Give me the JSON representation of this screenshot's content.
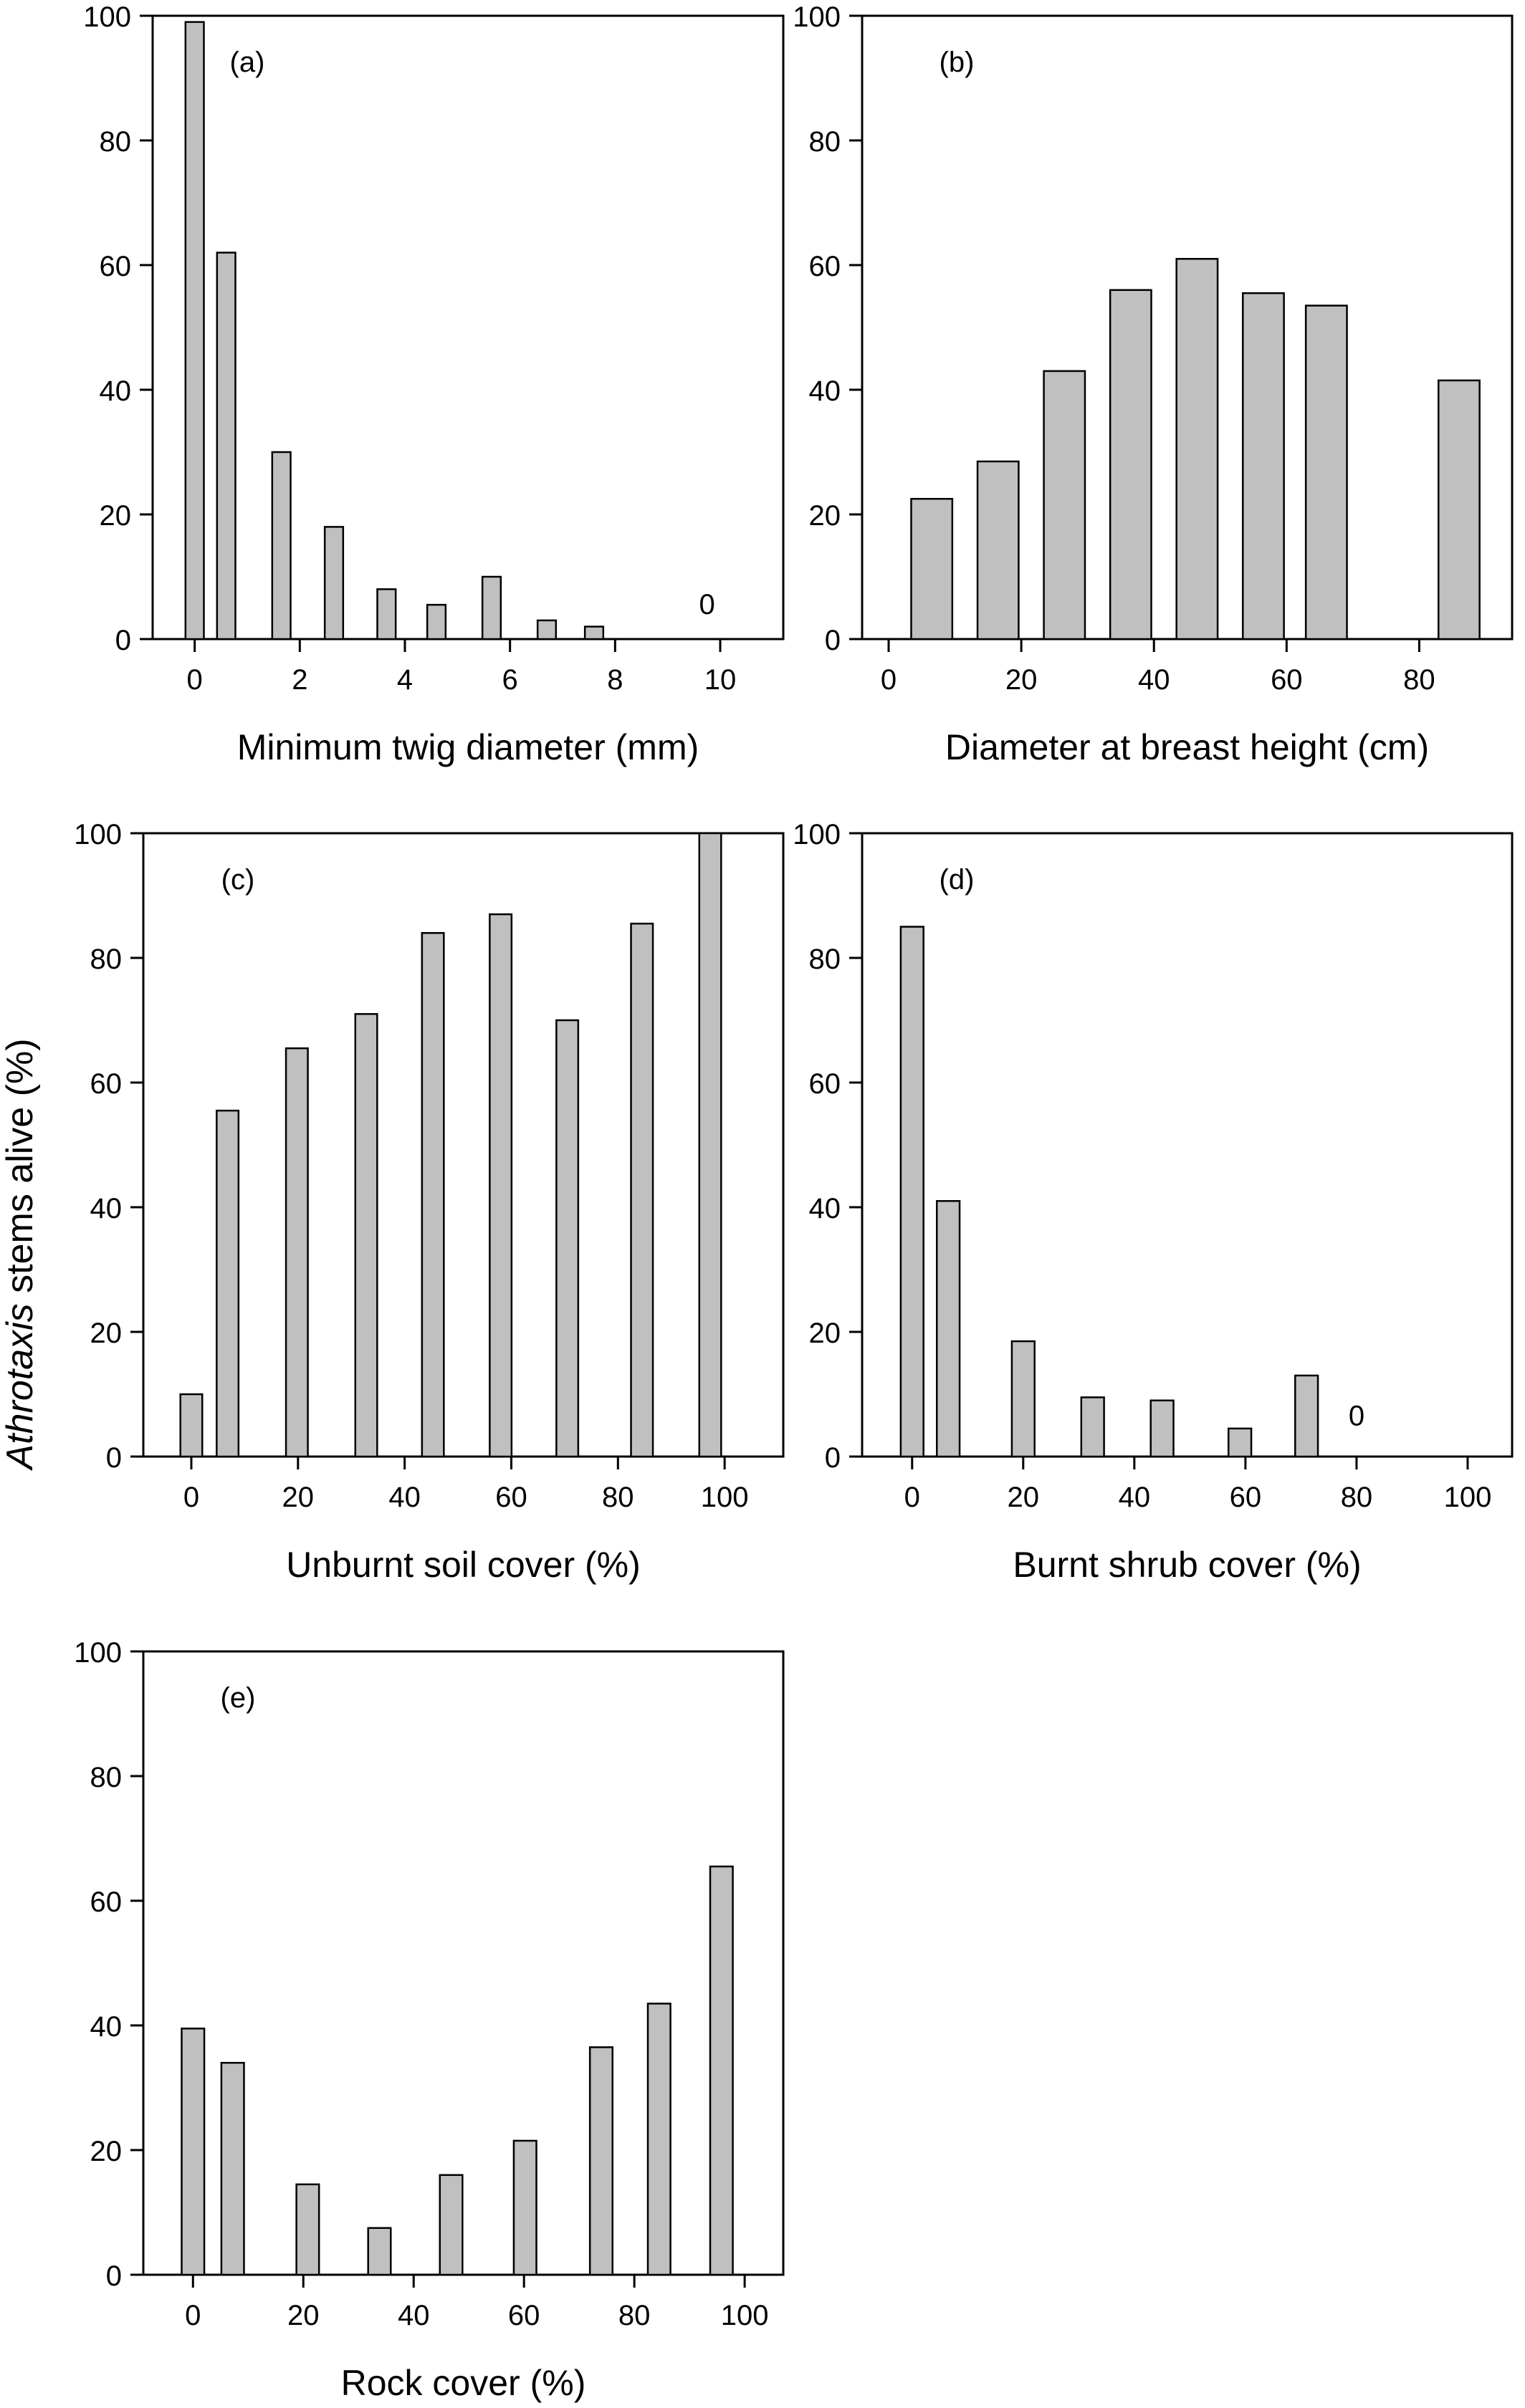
{
  "figure": {
    "ylabel_italic": "Athrotaxis",
    "ylabel_rest": " stems alive (%)"
  },
  "chart_data": [
    {
      "type": "bar",
      "panel_label": "(a)",
      "xlabel": "Minimum twig diameter (mm)",
      "xlim": [
        -0.8,
        11.2
      ],
      "xticks": [
        0,
        2,
        4,
        6,
        8,
        10
      ],
      "ylim": [
        0,
        100
      ],
      "yticks": [
        0,
        20,
        40,
        60,
        80,
        100
      ],
      "bar_width": 0.35,
      "x": [
        0,
        0.6,
        1.65,
        2.65,
        3.65,
        4.6,
        5.65,
        6.7,
        7.6
      ],
      "values": [
        99,
        62,
        30,
        18,
        8,
        5.5,
        10,
        3,
        2
      ],
      "annotations": [
        {
          "text": "0",
          "x": 9.75,
          "y": 4
        }
      ],
      "grid": false,
      "bar_color": "#c0c0c0"
    },
    {
      "type": "bar",
      "panel_label": "(b)",
      "xlabel": "Diameter at breast height (cm)",
      "xlim": [
        -4,
        94
      ],
      "xticks": [
        0,
        20,
        40,
        60,
        80
      ],
      "ylim": [
        0,
        100
      ],
      "yticks": [
        0,
        20,
        40,
        60,
        80,
        100
      ],
      "bar_width": 6.2,
      "x": [
        6.5,
        16.5,
        26.5,
        36.5,
        46.5,
        56.5,
        66,
        86
      ],
      "values": [
        22.5,
        28.5,
        43,
        56,
        61,
        55.5,
        53.5,
        41.5
      ],
      "grid": false,
      "bar_color": "#c0c0c0"
    },
    {
      "type": "bar",
      "panel_label": "(c)",
      "xlabel": "Unburnt soil cover (%)",
      "xlim": [
        -9,
        111
      ],
      "xticks": [
        0,
        20,
        40,
        60,
        80,
        100
      ],
      "ylim": [
        0,
        100
      ],
      "yticks": [
        0,
        20,
        40,
        60,
        80,
        100
      ],
      "bar_width": 4.1,
      "x": [
        0,
        6.8,
        19.8,
        32.8,
        45.3,
        58,
        70.5,
        84.5,
        97.3
      ],
      "values": [
        10,
        55.5,
        65.5,
        71,
        84,
        87,
        70,
        85.5,
        100
      ],
      "grid": false,
      "bar_color": "#c0c0c0"
    },
    {
      "type": "bar",
      "panel_label": "(d)",
      "xlabel": "Burnt shrub cover (%)",
      "xlim": [
        -9,
        108
      ],
      "xticks": [
        0,
        20,
        40,
        60,
        80,
        100
      ],
      "ylim": [
        0,
        100
      ],
      "yticks": [
        0,
        20,
        40,
        60,
        80,
        100
      ],
      "bar_width": 4.1,
      "x": [
        0,
        6.5,
        20,
        32.5,
        45,
        59,
        71
      ],
      "values": [
        85,
        41,
        18.5,
        9.5,
        9,
        4.5,
        13
      ],
      "annotations": [
        {
          "text": "0",
          "x": 80,
          "y": 5
        }
      ],
      "grid": false,
      "bar_color": "#c0c0c0"
    },
    {
      "type": "bar",
      "panel_label": "(e)",
      "xlabel": "Rock cover (%)",
      "xlim": [
        -9,
        107
      ],
      "xticks": [
        0,
        20,
        40,
        60,
        80,
        100
      ],
      "ylim": [
        0,
        100
      ],
      "yticks": [
        0,
        20,
        40,
        60,
        80,
        100
      ],
      "bar_width": 4.1,
      "x": [
        0,
        7.2,
        20.8,
        33.8,
        46.8,
        60.2,
        74,
        84.5,
        95.8
      ],
      "values": [
        39.5,
        34,
        14.5,
        7.5,
        16,
        21.5,
        36.5,
        43.5,
        65.5
      ],
      "grid": false,
      "bar_color": "#c0c0c0"
    }
  ]
}
